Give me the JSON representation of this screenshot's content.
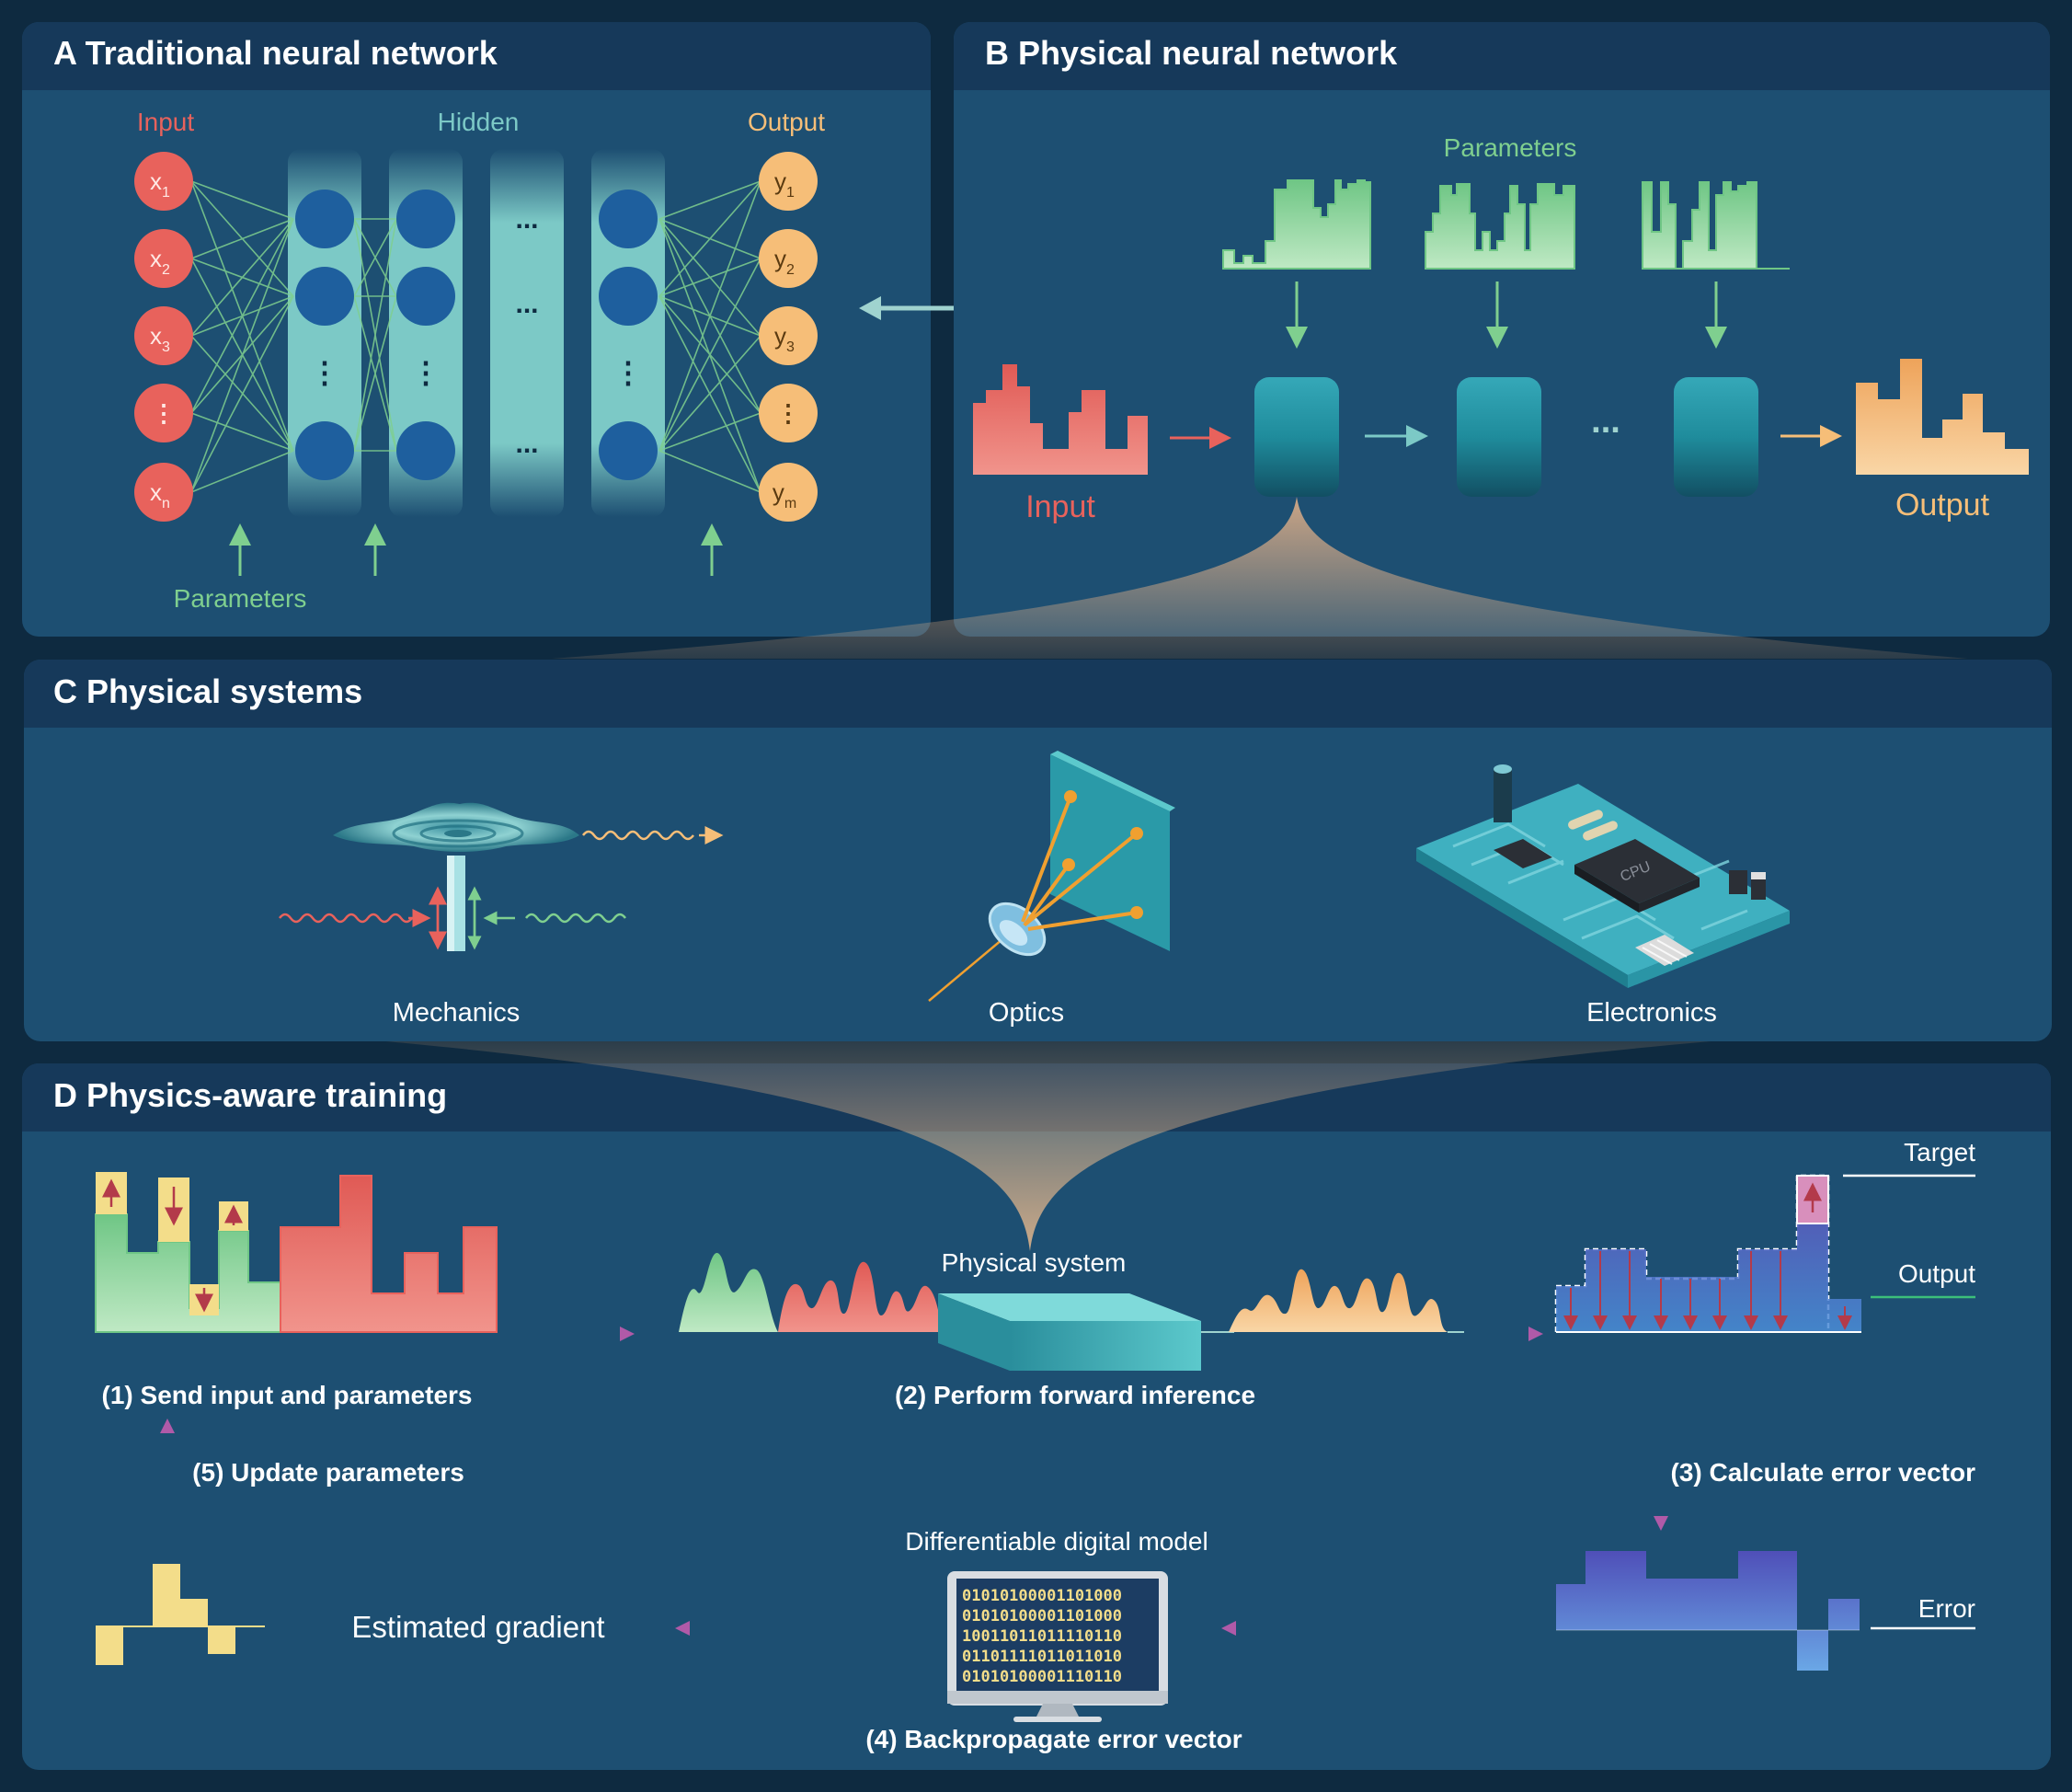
{
  "colors": {
    "page_bg": "#0e2a40",
    "panel_bg": "#1d4f72",
    "panel_header_bg": "#16395a",
    "input_red": "#e8625c",
    "output_orange": "#f6be78",
    "param_green": "#7fcf8f",
    "hidden_blue": "#1e5f9e",
    "cyan": "#2a9aa8",
    "arrow_purple": "#b05aa8",
    "text_white": "#ffffff",
    "error_blue": "#5b6fc8",
    "gradient_yellow": "#f3dd8a"
  },
  "panel_a": {
    "title": "A Traditional neural network",
    "input_label": "Input",
    "hidden_label": "Hidden",
    "output_label": "Output",
    "parameters_label": "Parameters",
    "inputs": [
      {
        "base": "x",
        "sub": "1"
      },
      {
        "base": "x",
        "sub": "2"
      },
      {
        "base": "x",
        "sub": "3"
      },
      {
        "base": "⋮",
        "sub": ""
      },
      {
        "base": "x",
        "sub": "n"
      }
    ],
    "outputs": [
      {
        "base": "y",
        "sub": "1"
      },
      {
        "base": "y",
        "sub": "2"
      },
      {
        "base": "y",
        "sub": "3"
      },
      {
        "base": "⋮",
        "sub": ""
      },
      {
        "base": "y",
        "sub": "m"
      }
    ],
    "ellipsis": "..."
  },
  "panel_b": {
    "title": "B Physical neural network",
    "parameters_label": "Parameters",
    "input_label": "Input",
    "output_label": "Output",
    "ellipsis": "..."
  },
  "panel_c": {
    "title": "C Physical systems",
    "systems": [
      "Mechanics",
      "Optics",
      "Electronics"
    ],
    "cpu_label": "CPU"
  },
  "panel_d": {
    "title": "D Physics-aware training",
    "step1": "(1) Send input and parameters",
    "step2": "(2) Perform forward inference",
    "step3": "(3) Calculate error vector",
    "step4": "(4) Backpropagate error vector",
    "step5": "(5) Update parameters",
    "physical_system_label": "Physical system",
    "target_label": "Target",
    "output_label": "Output",
    "error_label": "Error",
    "digital_model_label": "Differentiable digital model",
    "estimated_gradient_label": "Estimated gradient",
    "binary_lines": [
      "01010100001101000",
      "01010100001101000",
      "10011011011110110",
      "01101111011011010",
      "01010100001110110"
    ]
  }
}
